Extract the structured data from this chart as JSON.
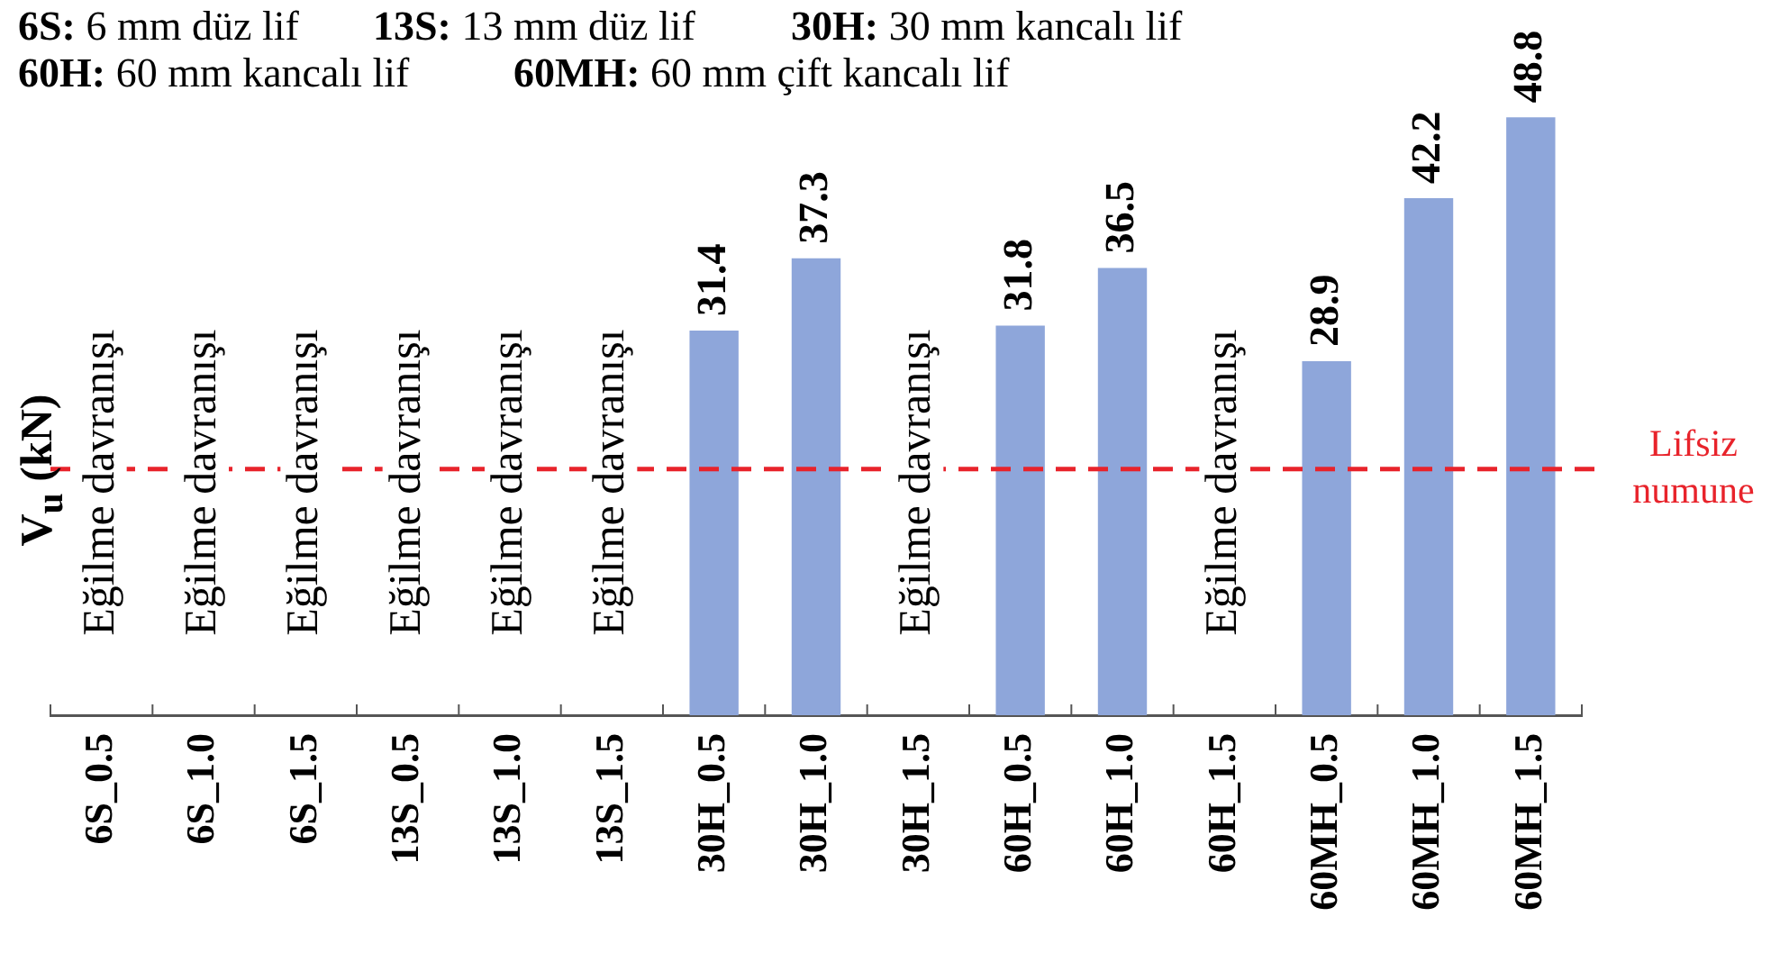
{
  "chart_data": {
    "type": "bar",
    "ylabel": "V$_{u}$ (kN)",
    "categories": [
      "6S_0.5",
      "6S_1.0",
      "6S_1.5",
      "13S_0.5",
      "13S_1.0",
      "13S_1.5",
      "30H_0.5",
      "30H_1.0",
      "30H_1.5",
      "60H_0.5",
      "60H_1.0",
      "60H_1.5",
      "60MH_0.5",
      "60MH_1.0",
      "60MH_1.5"
    ],
    "values": [
      null,
      null,
      null,
      null,
      null,
      null,
      31.4,
      37.3,
      null,
      31.8,
      36.5,
      null,
      28.9,
      42.2,
      48.8
    ],
    "color": "#8ea6da",
    "tick_labels": "x",
    "data_labels": true,
    "legend": false,
    "grid": false,
    "ref_lines": [
      {
        "axis": "y",
        "value": 20.1,
        "label": "Lifsiz numune",
        "color": "#e8232b",
        "line_style": "dashed"
      }
    ],
    "annotations": [
      "6S: 6 mm düz lif",
      "13S: 13 mm düz lif",
      "30H: 30 mm kancalı lif",
      "60H: 60 mm kancalı lif",
      "60MH: 60 mm çift kancalı lif",
      "Eğilme davranışı",
      "Eğilme davranışı",
      "Eğilme davranışı",
      "Eğilme davranışı",
      "Eğilme davranışı",
      "Eğilme davranışı",
      "Eğilme davranışı",
      "Eğilme davranışı"
    ]
  }
}
